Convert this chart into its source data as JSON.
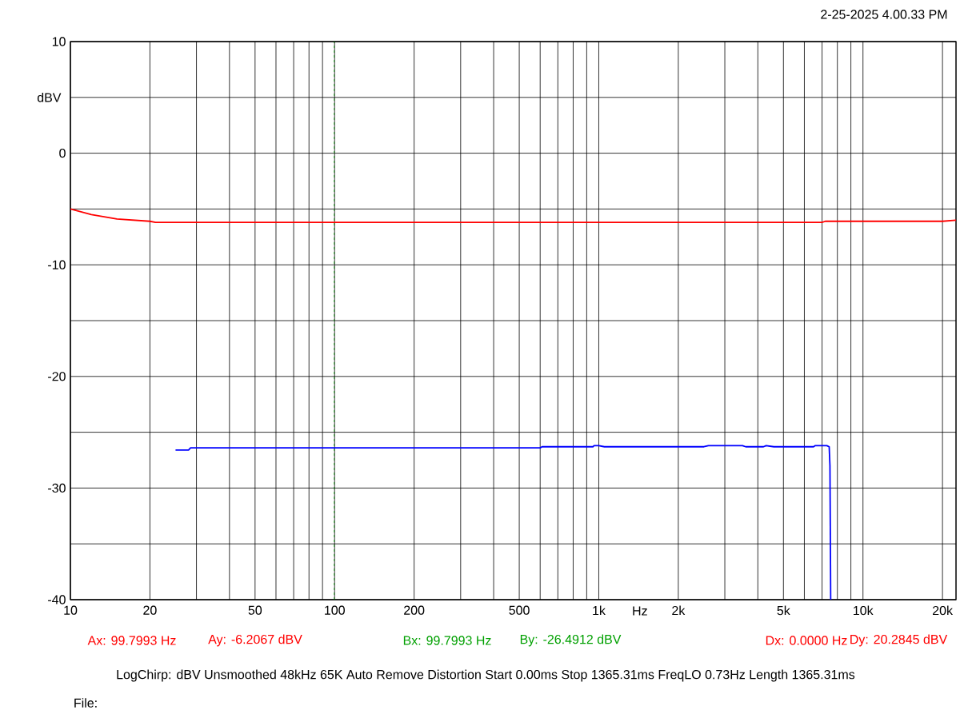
{
  "chart_data": {
    "type": "line",
    "ylabel": "dBV",
    "xlabel": "Hz",
    "log": "x",
    "grid": true,
    "xlim": [
      10,
      22500
    ],
    "ylim": [
      -40,
      10
    ],
    "xticks": [
      10,
      20,
      {
        "value": 30,
        "label": null
      },
      {
        "value": 40,
        "label": null
      },
      50,
      {
        "value": 60,
        "label": null
      },
      {
        "value": 70,
        "label": null
      },
      {
        "value": 80,
        "label": null
      },
      {
        "value": 90,
        "label": null
      },
      100,
      200,
      {
        "value": 300,
        "label": null
      },
      {
        "value": 400,
        "label": null
      },
      500,
      {
        "value": 600,
        "label": null
      },
      {
        "value": 700,
        "label": null
      },
      {
        "value": 800,
        "label": null
      },
      {
        "value": 900,
        "label": null
      },
      {
        "value": 1000,
        "label": "1k"
      },
      {
        "value": 2000,
        "label": "2k"
      },
      {
        "value": 3000,
        "label": null
      },
      {
        "value": 4000,
        "label": null
      },
      {
        "value": 5000,
        "label": "5k"
      },
      {
        "value": 6000,
        "label": null
      },
      {
        "value": 7000,
        "label": null
      },
      {
        "value": 8000,
        "label": null
      },
      {
        "value": 9000,
        "label": null
      },
      {
        "value": 10000,
        "label": "10k"
      },
      {
        "value": 20000,
        "label": "20k"
      }
    ],
    "yticks": [
      -40,
      {
        "value": -35,
        "label": null
      },
      -30,
      {
        "value": -25,
        "label": null
      },
      -20,
      {
        "value": -15,
        "label": null
      },
      -10,
      {
        "value": -5,
        "label": null
      },
      0,
      {
        "value": 5,
        "label": null
      },
      10
    ],
    "marker": "none",
    "line_style": "solid",
    "series": [
      {
        "color": "#ff0000",
        "x": [
          10,
          12,
          15,
          20,
          21,
          100,
          7000,
          7200,
          20000,
          22500
        ],
        "values": [
          -5.0,
          -5.5,
          -5.9,
          -6.1,
          -6.2,
          -6.2,
          -6.2,
          -6.1,
          -6.1,
          -6.0
        ]
      },
      {
        "color": "#0000ff",
        "x": [
          25,
          28,
          28.5,
          600,
          610,
          950,
          960,
          1000,
          1050,
          2500,
          2600,
          3500,
          3600,
          4200,
          4300,
          4600,
          6500,
          6600,
          7300,
          7450,
          7500,
          7550
        ],
        "values": [
          -26.6,
          -26.6,
          -26.4,
          -26.4,
          -26.3,
          -26.3,
          -26.2,
          -26.2,
          -26.3,
          -26.3,
          -26.2,
          -26.2,
          -26.3,
          -26.3,
          -26.2,
          -26.3,
          -26.3,
          -26.2,
          -26.2,
          -26.3,
          -28.0,
          -40
        ]
      }
    ],
    "ref_lines": [
      {
        "axis": "x",
        "value": 99.7993,
        "color": "#00a000",
        "line_style": "dashed"
      }
    ],
    "annotations": [
      "2-25-2025 4.00.33 PM",
      "Ax: 99.7993 Hz",
      "Ay: -6.2067 dBV",
      "Bx: 99.7993 Hz",
      "By: -26.4912 dBV",
      "Dx: 0.0000 Hz",
      "Dy: 20.2845 dBV",
      "LogChirp:  dBV   Unsmoothed   48kHz   65K   Auto Remove Distortion   Start 0.00ms   Stop 1365.31ms   FreqLO 0.73Hz   Length 1365.31ms",
      "File:"
    ]
  }
}
